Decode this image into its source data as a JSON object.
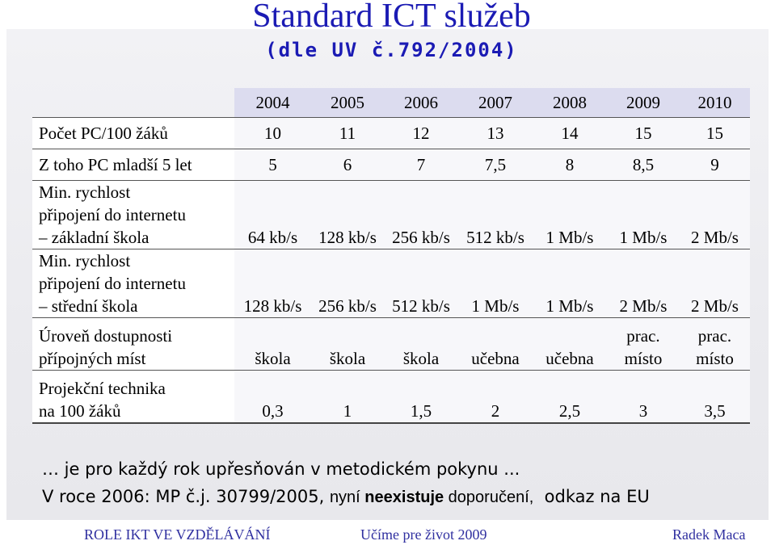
{
  "title": "Standard ICT služeb",
  "subtitle": "(dle UV č.792/2004)",
  "table": {
    "years": [
      "2004",
      "2005",
      "2006",
      "2007",
      "2008",
      "2009",
      "2010"
    ],
    "rows": [
      {
        "label": "Počet PC/100 žáků",
        "values": [
          "10",
          "11",
          "12",
          "13",
          "14",
          "15",
          "15"
        ]
      },
      {
        "label": "Z toho PC mladší 5 let",
        "values": [
          "5",
          "6",
          "7",
          "7,5",
          "8",
          "8,5",
          "9"
        ]
      },
      {
        "label_lines": [
          "Min. rychlost",
          "připojení do internetu",
          "– základní škola"
        ],
        "values": [
          "64 kb/s",
          "128 kb/s",
          "256 kb/s",
          "512 kb/s",
          "1 Mb/s",
          "1 Mb/s",
          "2 Mb/s"
        ]
      },
      {
        "label_lines": [
          "Min. rychlost",
          "připojení do internetu",
          "– střední škola"
        ],
        "values": [
          "128 kb/s",
          "256 kb/s",
          "512 kb/s",
          "1 Mb/s",
          "1 Mb/s",
          "2 Mb/s",
          "2 Mb/s"
        ]
      },
      {
        "label_lines": [
          "Úroveň dostupnosti",
          "přípojných míst"
        ],
        "values": [
          "škola",
          "škola",
          "škola",
          "učebna",
          "učebna",
          "prac. místo",
          "prac. místo"
        ]
      },
      {
        "label_lines": [
          "Projekční technika",
          "na 100 žáků"
        ],
        "values": [
          "0,3",
          "1",
          "1,5",
          "2",
          "2,5",
          "3",
          "3,5"
        ]
      }
    ]
  },
  "notes": {
    "line1": "… je pro každý rok upřesňován v metodickém pokynu ...",
    "line2_prefix": "V roce 2006: MP č.j. 30799/2005, ",
    "line2_mid_a": "nyní ",
    "line2_bold": "neexistuje",
    "line2_mid_b": " doporučení,",
    "line2_suffix": "  odkaz na EU"
  },
  "footer": {
    "left": "ROLE IKT VE VZDĚLÁVÁNÍ",
    "center": "Učíme pre život 2009",
    "right": "Radek Maca"
  },
  "colors": {
    "title": "#1b1bb4",
    "header_band": "#dcdcef",
    "footer": "#3030a0"
  }
}
